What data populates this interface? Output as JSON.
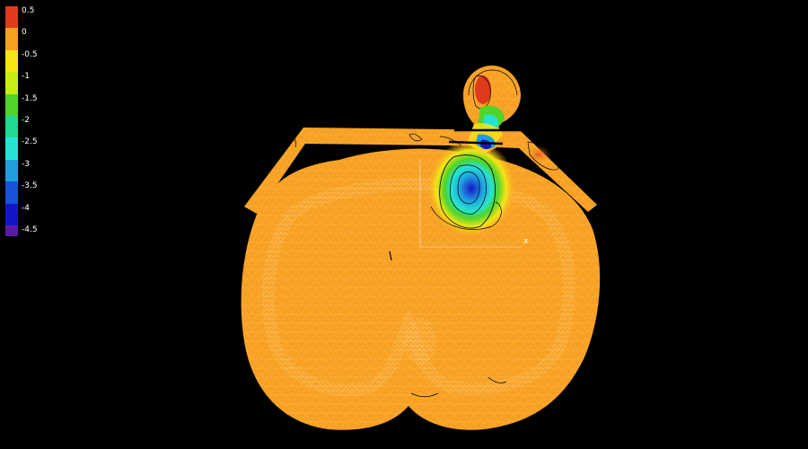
{
  "legend": {
    "ticks": [
      "0.5",
      "0",
      "-0.5",
      "-1",
      "-1.5",
      "-2",
      "-2.5",
      "-3",
      "-3.5",
      "-4",
      "-4.5"
    ],
    "colors": [
      "#e03a1c",
      "#f7a021",
      "#f6e516",
      "#c5ee12",
      "#4fd42a",
      "#20d88f",
      "#25e3d3",
      "#1f9ee0",
      "#1653d8",
      "#1515c8",
      "#5a1aa8"
    ]
  },
  "axis": {
    "x_label": "x"
  },
  "colors": {
    "background": "#000000",
    "mesh_fill": "#f7a021",
    "mesh_line": "#ffd48a",
    "contour_line": "#000000"
  }
}
